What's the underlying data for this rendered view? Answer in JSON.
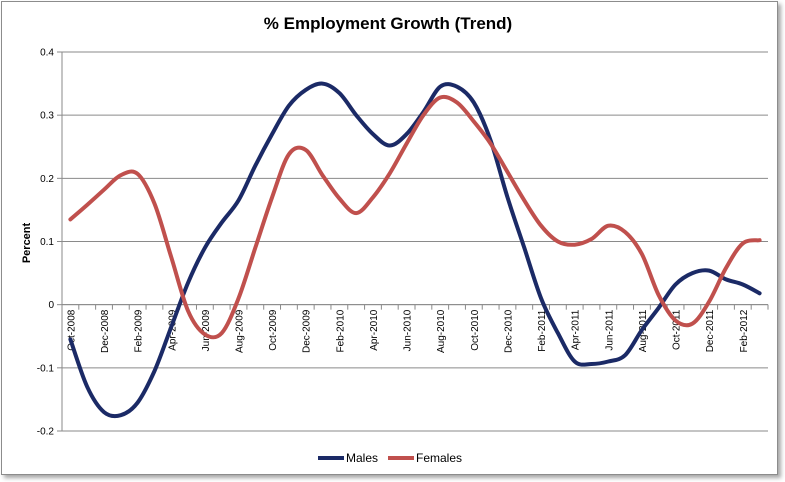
{
  "chart_data": {
    "type": "line",
    "title": "% Employment Growth (Trend)",
    "xlabel": "",
    "ylabel": "Percent",
    "ylim": [
      -0.2,
      0.4
    ],
    "yticks": [
      -0.2,
      -0.1,
      0,
      0.1,
      0.2,
      0.3,
      0.4
    ],
    "grid": true,
    "legend_position": "bottom",
    "x": [
      "Oct-2008",
      "Nov-2008",
      "Dec-2008",
      "Jan-2009",
      "Feb-2009",
      "Mar-2009",
      "Apr-2009",
      "May-2009",
      "Jun-2009",
      "Jul-2009",
      "Aug-2009",
      "Sep-2009",
      "Oct-2009",
      "Nov-2009",
      "Dec-2009",
      "Jan-2010",
      "Feb-2010",
      "Mar-2010",
      "Apr-2010",
      "May-2010",
      "Jun-2010",
      "Jul-2010",
      "Aug-2010",
      "Sep-2010",
      "Oct-2010",
      "Nov-2010",
      "Dec-2010",
      "Jan-2011",
      "Feb-2011",
      "Mar-2011",
      "Apr-2011",
      "May-2011",
      "Jun-2011",
      "Jul-2011",
      "Aug-2011",
      "Sep-2011",
      "Oct-2011",
      "Nov-2011",
      "Dec-2011",
      "Jan-2012",
      "Feb-2012",
      "Mar-2012"
    ],
    "tick_labels": [
      "Oct-2008",
      "Dec-2008",
      "Feb-2009",
      "Apr-2009",
      "Jun-2009",
      "Aug-2009",
      "Oct-2009",
      "Dec-2009",
      "Feb-2010",
      "Apr-2010",
      "Jun-2010",
      "Aug-2010",
      "Oct-2010",
      "Dec-2010",
      "Feb-2011",
      "Apr-2011",
      "Jun-2011",
      "Aug-2011",
      "Oct-2011",
      "Dec-2011",
      "Feb-2012"
    ],
    "series": [
      {
        "name": "Males",
        "color": "#1b2a66",
        "values": [
          -0.055,
          -0.13,
          -0.17,
          -0.175,
          -0.155,
          -0.105,
          -0.035,
          0.035,
          0.09,
          0.13,
          0.165,
          0.22,
          0.27,
          0.315,
          0.34,
          0.35,
          0.335,
          0.3,
          0.27,
          0.252,
          0.27,
          0.305,
          0.345,
          0.345,
          0.32,
          0.26,
          0.17,
          0.09,
          0.01,
          -0.045,
          -0.09,
          -0.094,
          -0.09,
          -0.08,
          -0.04,
          -0.005,
          0.032,
          0.05,
          0.054,
          0.04,
          0.032,
          0.018
        ]
      },
      {
        "name": "Females",
        "color": "#c0504d",
        "values": [
          0.135,
          0.158,
          0.182,
          0.205,
          0.207,
          0.16,
          0.075,
          -0.01,
          -0.047,
          -0.045,
          0.01,
          0.09,
          0.17,
          0.238,
          0.245,
          0.205,
          0.168,
          0.145,
          0.17,
          0.208,
          0.255,
          0.3,
          0.328,
          0.32,
          0.29,
          0.255,
          0.21,
          0.165,
          0.125,
          0.1,
          0.095,
          0.104,
          0.125,
          0.115,
          0.08,
          0.015,
          -0.025,
          -0.03,
          0.005,
          0.058,
          0.097,
          0.102
        ]
      }
    ]
  }
}
